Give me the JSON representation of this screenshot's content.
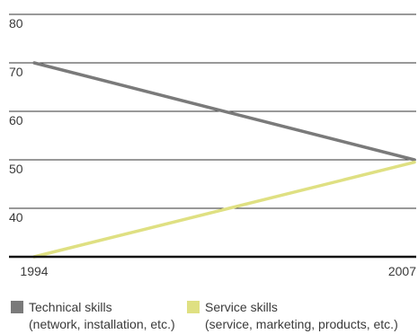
{
  "chart_data": {
    "type": "line",
    "x": [
      "1994",
      "2007"
    ],
    "series": [
      {
        "name": "Technical skills",
        "sublabel": "(network, installation, etc.)",
        "color": "#7a7a7a",
        "values": [
          70,
          50
        ]
      },
      {
        "name": "Service skills",
        "sublabel": "(service, marketing, products, etc.)",
        "color": "#dfe082",
        "values": [
          30,
          49.5
        ]
      }
    ],
    "yticks": [
      40,
      50,
      60,
      70,
      80
    ],
    "ylim": [
      30,
      80
    ],
    "grid": true,
    "legend_position": "bottom"
  }
}
